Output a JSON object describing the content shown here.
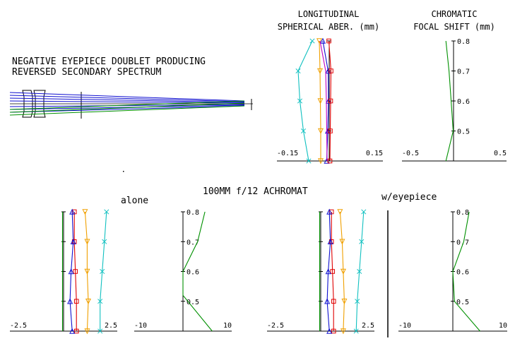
{
  "labels": {
    "title_line1": "NEGATIVE EYEPIECE DOUBLET PRODUCING",
    "title_line2": "REVERSED SECONDARY SPECTRUM",
    "sa_line1": "LONGITUDINAL",
    "sa_line2": "SPHERICAL ABER. (mm)",
    "cfs_line1": "CHROMATIC",
    "cfs_line2": "FOCAL SHIFT (mm)",
    "center_title": "100MM f/12 ACHROMAT",
    "alone": "alone",
    "with_eyepiece": "w/eyepiece"
  },
  "colors": {
    "blue": "#1010d0",
    "green": "#009000",
    "cyan": "#10c0c0",
    "orange": "#f0a000",
    "red": "#e00000",
    "magenta": "#c000c0",
    "purple": "#6a2bd8",
    "navy": "#000080",
    "black": "#000000"
  },
  "chart_data": [
    {
      "type": "line",
      "title": "LONGITUDINAL SPHERICAL ABER. (mm)",
      "subject": "doublet with eyepiece (top)",
      "xlim": [
        -0.15,
        0.15
      ],
      "ylim": [
        0,
        0.8
      ],
      "xtick_labels": [
        "-0.15",
        "0.15"
      ],
      "y": [
        0.8,
        0.6,
        0.4,
        0.2,
        0.0
      ],
      "series": [
        {
          "name": "cyan x",
          "color": "cyan",
          "marker": "x",
          "values": [
            -0.05,
            -0.09,
            -0.085,
            -0.075,
            -0.06
          ]
        },
        {
          "name": "orange triangle-down",
          "color": "orange",
          "marker": "tri-down",
          "values": [
            -0.03,
            -0.028,
            -0.027,
            -0.026,
            -0.026
          ]
        },
        {
          "name": "blue triangle",
          "color": "blue",
          "marker": "tri-up",
          "values": [
            -0.02,
            -0.005,
            -0.004,
            -0.006,
            -0.009
          ]
        },
        {
          "name": "red square",
          "color": "red",
          "marker": "square",
          "values": [
            -0.003,
            0.003,
            0.002,
            0.001,
            0.0
          ]
        },
        {
          "name": "magenta",
          "color": "magenta",
          "marker": "none",
          "values": [
            -0.028,
            -0.012,
            -0.01,
            -0.009,
            -0.008
          ]
        }
      ]
    },
    {
      "type": "line",
      "title": "CHROMATIC FOCAL SHIFT (mm)",
      "subject": "doublet with eyepiece (top)",
      "xlim": [
        -0.5,
        0.5
      ],
      "ylim": [
        0.4,
        0.8
      ],
      "xtick_labels": [
        "-0.5",
        "0.5"
      ],
      "ytick_labels": [
        "0.8",
        "0.7",
        "0.6",
        "0.5"
      ],
      "series": [
        {
          "name": "focal shift",
          "color": "green",
          "points": [
            [
              -0.08,
              0.4
            ],
            [
              -0.01,
              0.5
            ],
            [
              -0.03,
              0.6
            ],
            [
              -0.05,
              0.7
            ],
            [
              -0.08,
              0.8
            ]
          ]
        }
      ]
    },
    {
      "type": "line",
      "title": "LONGITUDINAL SPHERICAL ABER. (mm)",
      "subject": "100MM f/12 ACHROMAT alone",
      "xlim": [
        -2.5,
        2.5
      ],
      "ylim": [
        0,
        0.8
      ],
      "xtick_labels": [
        "-2.5",
        "2.5"
      ],
      "y": [
        0.8,
        0.6,
        0.4,
        0.2,
        0.0
      ],
      "series": [
        {
          "name": "cyan x",
          "color": "cyan",
          "marker": "x",
          "values": [
            2.0,
            1.9,
            1.8,
            1.7,
            1.7
          ]
        },
        {
          "name": "orange triangle-down",
          "color": "orange",
          "marker": "tri-down",
          "values": [
            1.0,
            1.1,
            1.1,
            1.15,
            1.1
          ]
        },
        {
          "name": "red square",
          "color": "red",
          "marker": "square",
          "values": [
            0.5,
            0.5,
            0.55,
            0.6,
            0.6
          ]
        },
        {
          "name": "blue triangle",
          "color": "blue",
          "marker": "tri-up",
          "values": [
            0.4,
            0.45,
            0.35,
            0.3,
            0.4
          ]
        },
        {
          "name": "green",
          "color": "green",
          "marker": "none",
          "values": [
            -0.05,
            -0.05,
            -0.05,
            -0.05,
            -0.05
          ]
        }
      ]
    },
    {
      "type": "line",
      "title": "CHROMATIC FOCAL SHIFT (mm)",
      "subject": "100MM f/12 ACHROMAT alone",
      "xlim": [
        -10,
        10
      ],
      "ylim": [
        0.4,
        0.8
      ],
      "xtick_labels": [
        "-10",
        "10"
      ],
      "ytick_labels": [
        "0.8",
        "0.7",
        "0.6",
        "0.5"
      ],
      "series": [
        {
          "name": "focal shift",
          "color": "green",
          "points": [
            [
              6,
              0.4
            ],
            [
              0,
              0.52
            ],
            [
              0,
              0.6
            ],
            [
              3,
              0.7
            ],
            [
              4.5,
              0.8
            ]
          ]
        }
      ]
    },
    {
      "type": "line",
      "title": "LONGITUDINAL SPHERICAL ABER. (mm)",
      "subject": "100MM f/12 ACHROMAT w/eyepiece",
      "xlim": [
        -2.5,
        2.5
      ],
      "ylim": [
        0,
        0.8
      ],
      "xtick_labels": [
        "-2.5",
        "2.5"
      ],
      "y": [
        0.8,
        0.6,
        0.4,
        0.2,
        0.0
      ],
      "series": [
        {
          "name": "cyan x",
          "color": "cyan",
          "marker": "x",
          "values": [
            2.0,
            1.9,
            1.8,
            1.7,
            1.65
          ]
        },
        {
          "name": "orange triangle-down",
          "color": "orange",
          "marker": "tri-down",
          "values": [
            0.9,
            1.0,
            1.05,
            1.1,
            1.05
          ]
        },
        {
          "name": "red square",
          "color": "red",
          "marker": "square",
          "values": [
            0.5,
            0.5,
            0.55,
            0.6,
            0.6
          ]
        },
        {
          "name": "blue triangle",
          "color": "blue",
          "marker": "tri-up",
          "values": [
            0.4,
            0.45,
            0.35,
            0.3,
            0.4
          ]
        },
        {
          "name": "green",
          "color": "green",
          "marker": "none",
          "values": [
            -0.05,
            -0.05,
            -0.05,
            -0.05,
            -0.05
          ]
        }
      ]
    },
    {
      "type": "line",
      "title": "CHROMATIC FOCAL SHIFT (mm)",
      "subject": "100MM f/12 ACHROMAT w/eyepiece",
      "xlim": [
        -10,
        10
      ],
      "ylim": [
        0.4,
        0.8
      ],
      "xtick_labels": [
        "-10",
        "10"
      ],
      "ytick_labels": [
        "0.8",
        "0.7",
        "0.6",
        "0.5"
      ],
      "series": [
        {
          "name": "focal shift",
          "color": "green",
          "points": [
            [
              5,
              0.4
            ],
            [
              0.3,
              0.5
            ],
            [
              0,
              0.6
            ],
            [
              2,
              0.7
            ],
            [
              3,
              0.8
            ]
          ]
        }
      ]
    }
  ]
}
